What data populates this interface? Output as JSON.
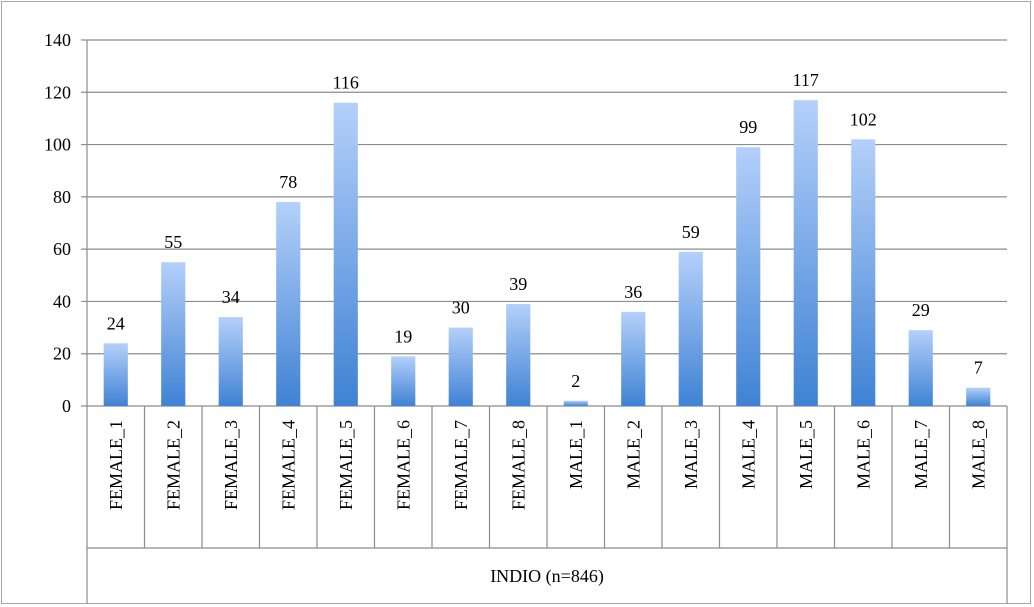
{
  "chart_data": {
    "type": "bar",
    "title": "",
    "xlabel": "",
    "ylabel": "",
    "ylim": [
      0,
      140
    ],
    "yticks": [
      0,
      20,
      40,
      60,
      80,
      100,
      120,
      140
    ],
    "grid": true,
    "legend": "none",
    "group_label": "INDIO (n=846)",
    "categories": [
      "FEMALE_1",
      "FEMALE_2",
      "FEMALE_3",
      "FEMALE_4",
      "FEMALE_5",
      "FEMALE_6",
      "FEMALE_7",
      "FEMALE_8",
      "MALE_1",
      "MALE_2",
      "MALE_3",
      "MALE_4",
      "MALE_5",
      "MALE_6",
      "MALE_7",
      "MALE_8"
    ],
    "values": [
      24,
      55,
      34,
      78,
      116,
      19,
      30,
      39,
      2,
      36,
      59,
      99,
      117,
      102,
      29,
      7
    ],
    "colors": {
      "bar_top": "#b4d0fa",
      "bar_bottom": "#3f82d4",
      "grid": "#8c8c8c",
      "axis": "#8c8c8c"
    }
  }
}
